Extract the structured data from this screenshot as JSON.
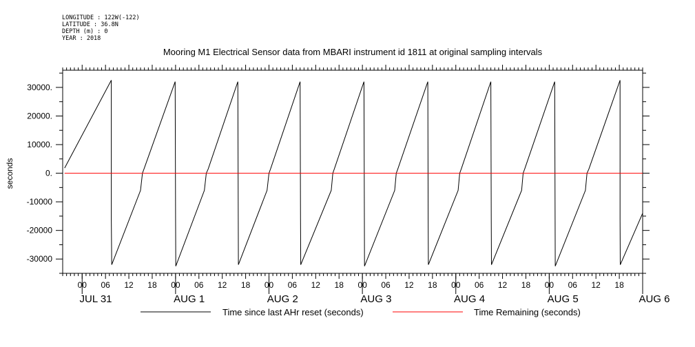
{
  "header": {
    "longitude": "LONGITUDE : 122W(-122)",
    "latitude": "LATITUDE : 36.8N",
    "depth": "DEPTH (m) : 0",
    "year": "YEAR : 2018"
  },
  "chart_data": {
    "type": "line",
    "title": "Mooring M1 Electrical Sensor data from MBARI instrument id 1811 at original sampling intervals",
    "ylabel": "seconds",
    "xlabel": "",
    "xlim": [
      -5,
      144
    ],
    "ylim": [
      -35000,
      36000
    ],
    "x_unit": "hours since 2018-07-31 00:00",
    "y_ticks": [
      30000,
      20000,
      10000,
      0,
      -10000,
      -20000,
      -30000
    ],
    "y_tick_labels": [
      "30000.",
      "20000.",
      "10000.",
      "0.",
      "-10000",
      "-20000",
      "-30000"
    ],
    "x_hour_ticks": [
      0,
      6,
      12,
      18,
      24,
      30,
      36,
      42,
      48,
      54,
      60,
      66,
      72,
      78,
      84,
      90,
      96,
      102,
      108,
      114,
      120,
      126,
      132,
      138
    ],
    "x_hour_labels": [
      "00",
      "06",
      "12",
      "18",
      "00",
      "06",
      "12",
      "18",
      "00",
      "06",
      "12",
      "18",
      "00",
      "06",
      "12",
      "18",
      "00",
      "06",
      "12",
      "18",
      "00",
      "06",
      "12",
      "18"
    ],
    "date_labels": [
      {
        "x": 3.5,
        "label": "JUL 31"
      },
      {
        "x": 27.5,
        "label": "AUG  1"
      },
      {
        "x": 51.5,
        "label": "AUG  2"
      },
      {
        "x": 75.5,
        "label": "AUG  3"
      },
      {
        "x": 99.5,
        "label": "AUG  4"
      },
      {
        "x": 123.5,
        "label": "AUG  5"
      },
      {
        "x": 147,
        "label": "AUG  6"
      }
    ],
    "grid": false,
    "legend_position": "bottom",
    "series": [
      {
        "name": "Time since last AHr reset (seconds)",
        "color": "#000000",
        "x": [
          -4.5,
          7.5,
          7.5,
          7.6,
          15.0,
          15.5,
          15.9,
          23.9,
          24.0,
          24.05,
          31.4,
          31.9,
          32.4,
          40.0,
          40.1,
          40.15,
          47.5,
          48.0,
          48.4,
          56.0,
          56.1,
          56.15,
          64.0,
          64.4,
          64.8,
          72.4,
          72.5,
          72.55,
          80.3,
          80.7,
          81.1,
          88.8,
          88.9,
          88.95,
          96.6,
          97.0,
          97.4,
          105.0,
          105.1,
          105.15,
          112.9,
          113.3,
          113.7,
          121.4,
          121.5,
          121.55,
          129.3,
          129.7,
          130.2,
          138.2,
          138.2,
          138.25,
          144.0
        ],
        "y": [
          1800,
          32500,
          -16000,
          -32000,
          -6000,
          0,
          1500,
          32000,
          -16000,
          -32500,
          -6000,
          0,
          1500,
          32000,
          -16000,
          -32000,
          -6000,
          0,
          1500,
          32000,
          -16000,
          -32000,
          -6000,
          0,
          1500,
          32000,
          -16000,
          -32500,
          -6000,
          0,
          1500,
          32000,
          -16000,
          -32000,
          -6000,
          0,
          1500,
          32000,
          -16000,
          -32000,
          -6000,
          0,
          1500,
          32000,
          -16000,
          -32500,
          -6000,
          0,
          1500,
          32500,
          -16000,
          -32000,
          -14000
        ]
      },
      {
        "name": "Time Remaining (seconds)",
        "color": "#ff0000",
        "x": [
          -4.5,
          144.0
        ],
        "y": [
          0,
          0
        ]
      }
    ]
  }
}
